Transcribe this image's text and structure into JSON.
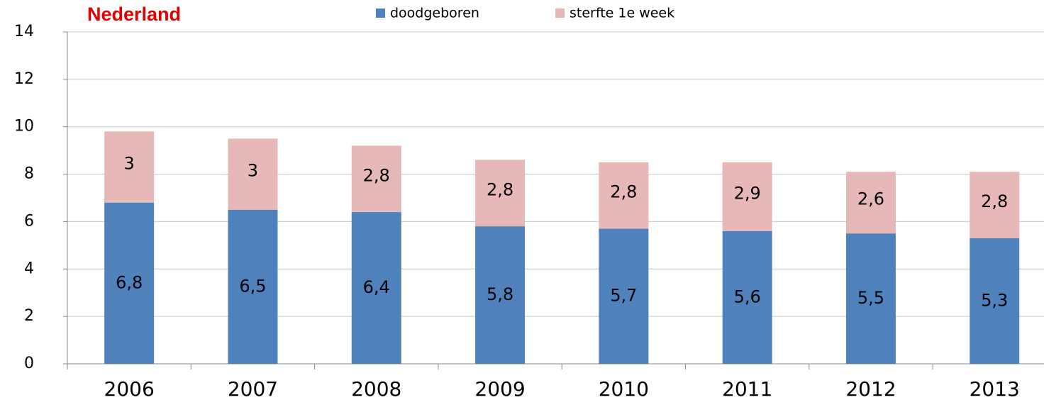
{
  "chart_data": {
    "type": "stacked_bar",
    "title": "Nederland",
    "categories": [
      "2006",
      "2007",
      "2008",
      "2009",
      "2010",
      "2011",
      "2012",
      "2013"
    ],
    "series": [
      {
        "name": "doodgeboren",
        "color": "#4f81bd",
        "values": [
          6.8,
          6.5,
          6.4,
          5.8,
          5.7,
          5.6,
          5.5,
          5.3
        ],
        "value_labels": [
          "6,8",
          "6,5",
          "6,4",
          "5,8",
          "5,7",
          "5,6",
          "5,5",
          "5,3"
        ]
      },
      {
        "name": "sterfte 1e week",
        "color": "#e6b9b8",
        "values": [
          3,
          3,
          2.8,
          2.8,
          2.8,
          2.9,
          2.6,
          2.8
        ],
        "value_labels": [
          "3",
          "3",
          "2,8",
          "2,8",
          "2,8",
          "2,9",
          "2,6",
          "2,8"
        ]
      }
    ],
    "ylim": [
      0,
      14
    ],
    "yticks": [
      0,
      2,
      4,
      6,
      8,
      10,
      12,
      14
    ],
    "grid": true,
    "legend": "top"
  }
}
